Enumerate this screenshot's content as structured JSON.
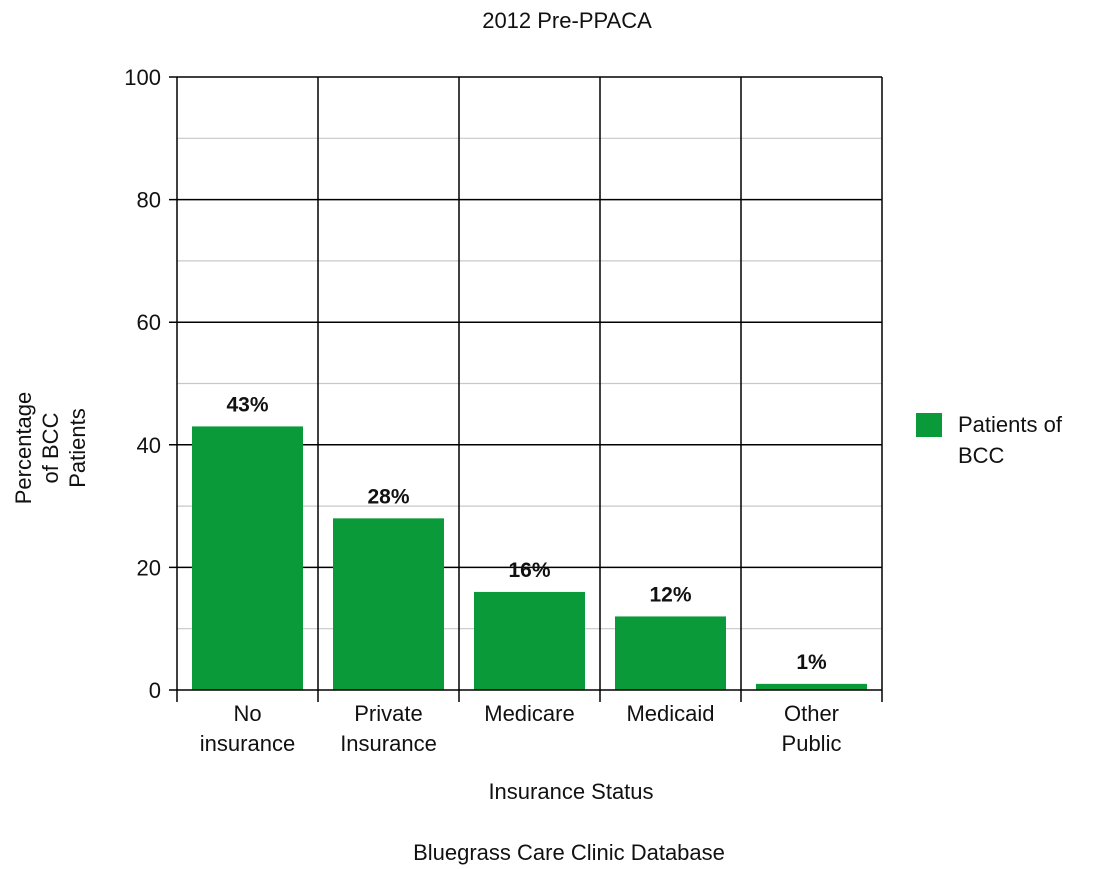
{
  "chart_data": {
    "type": "bar",
    "title": "2012 Pre-PPACA",
    "categories": [
      [
        "No",
        "insurance"
      ],
      [
        "Private",
        "Insurance"
      ],
      [
        "Medicare"
      ],
      [
        "Medicaid"
      ],
      [
        "Other",
        "Public"
      ]
    ],
    "series": [
      {
        "name": [
          "Patients of",
          "BCC"
        ],
        "values": [
          43,
          28,
          16,
          12,
          1
        ],
        "color": "#0a9a3a"
      }
    ],
    "value_labels": [
      "43%",
      "28%",
      "16%",
      "12%",
      "1%"
    ],
    "xlabel": "Insurance Status",
    "ylabel": [
      "Percentage",
      "of BCC",
      "Patients"
    ],
    "ylim": [
      0,
      100
    ],
    "yticks": [
      0,
      20,
      40,
      60,
      80,
      100
    ],
    "grid": true,
    "legend_position": "right",
    "footer": "Bluegrass Care Clinic Database"
  }
}
